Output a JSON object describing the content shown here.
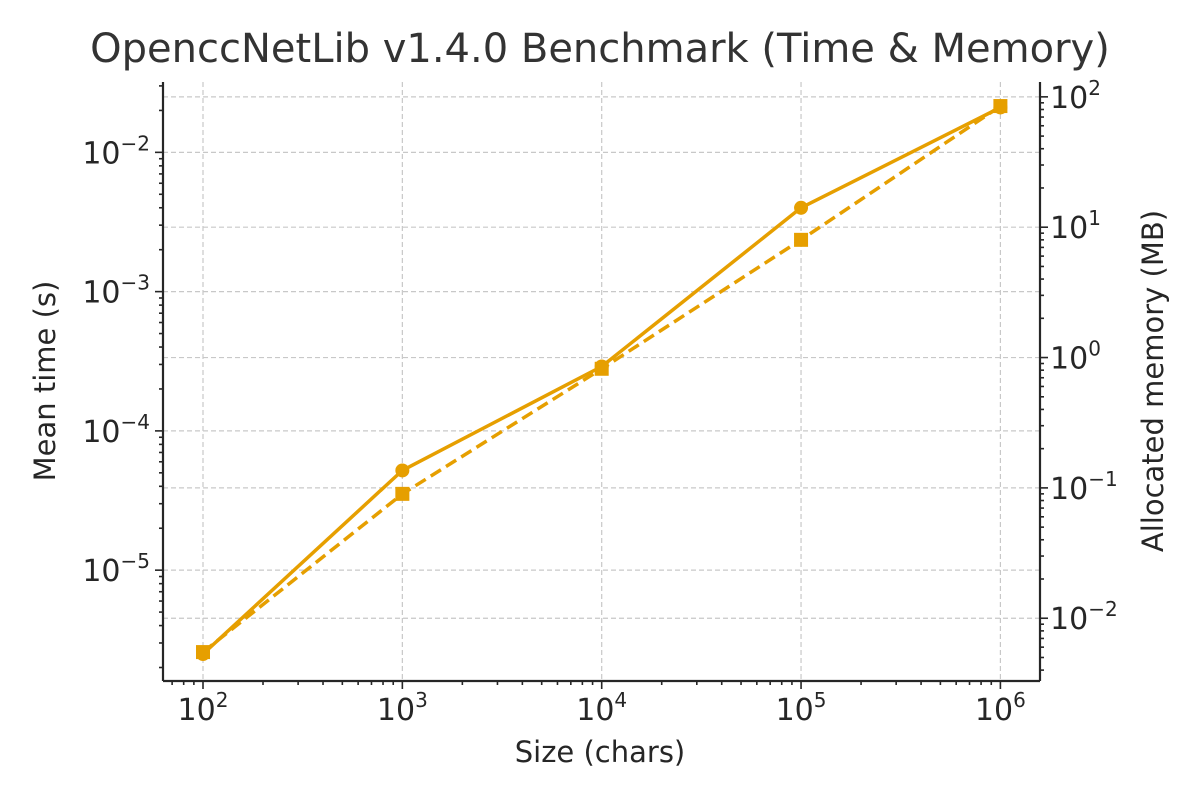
{
  "colors": {
    "series": "#E69F00",
    "axis": "#262626",
    "grid": "#C8C8C8",
    "title": "#333333"
  },
  "chart_data": {
    "type": "line",
    "title": "OpenccNetLib v1.4.0 Benchmark (Time & Memory)",
    "xlabel": "Size (chars)",
    "ylabel_left": "Mean time (s)",
    "ylabel_right": "Allocated memory (MB)",
    "x_scale": "log",
    "y_left_scale": "log",
    "y_right_scale": "log",
    "x": [
      100,
      1000,
      10000,
      100000,
      1000000
    ],
    "xlim": [
      63,
      1580000
    ],
    "ylim_left": [
      1.6e-06,
      0.032
    ],
    "ylim_right": [
      0.0033,
      130
    ],
    "grid": true,
    "x_ticks": [
      {
        "base": "10",
        "exp": "2",
        "value": 100
      },
      {
        "base": "10",
        "exp": "3",
        "value": 1000
      },
      {
        "base": "10",
        "exp": "4",
        "value": 10000
      },
      {
        "base": "10",
        "exp": "5",
        "value": 100000
      },
      {
        "base": "10",
        "exp": "6",
        "value": 1000000
      }
    ],
    "y_left_ticks": [
      {
        "base": "10",
        "exp": "−5",
        "value": 1e-05
      },
      {
        "base": "10",
        "exp": "−4",
        "value": 0.0001
      },
      {
        "base": "10",
        "exp": "−3",
        "value": 0.001
      },
      {
        "base": "10",
        "exp": "−2",
        "value": 0.01
      }
    ],
    "y_right_ticks": [
      {
        "base": "10",
        "exp": "−2",
        "value": 0.01
      },
      {
        "base": "10",
        "exp": "−1",
        "value": 0.1
      },
      {
        "base": "10",
        "exp": "0",
        "value": 1
      },
      {
        "base": "10",
        "exp": "1",
        "value": 10
      },
      {
        "base": "10",
        "exp": "2",
        "value": 100
      }
    ],
    "series": [
      {
        "axis": "left",
        "marker": "circle",
        "linestyle": "solid",
        "color": "#E69F00",
        "values": [
          2.5e-06,
          5.2e-05,
          0.00029,
          0.004,
          0.021
        ]
      },
      {
        "axis": "right",
        "marker": "square",
        "linestyle": "dashed",
        "color": "#E69F00",
        "values": [
          0.0055,
          0.09,
          0.82,
          8.0,
          85
        ]
      }
    ]
  }
}
